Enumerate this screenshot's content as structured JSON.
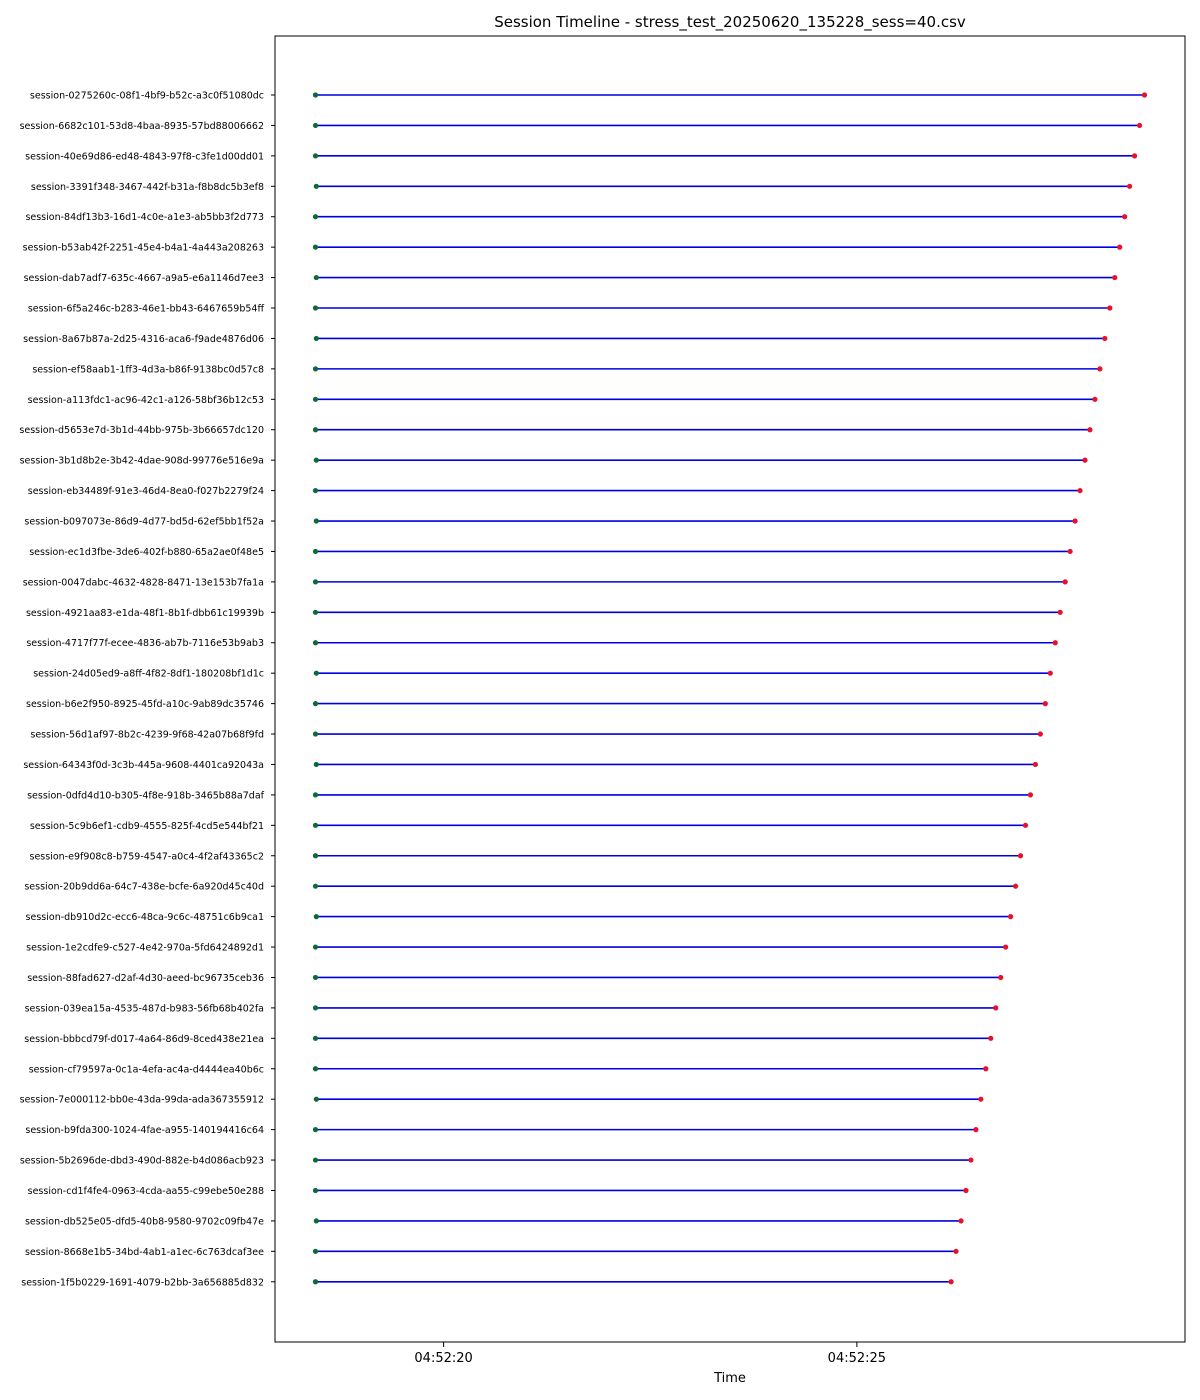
{
  "chart_data": {
    "type": "timeline",
    "title": "Session Timeline - stress_test_20250620_135228_sess=40.csv",
    "xlabel": "Time",
    "ylabel": "",
    "x_ticks": [
      "04:52:20",
      "04:52:25"
    ],
    "x_tick_values_s": [
      0,
      5
    ],
    "xlim_s": [
      -2.04,
      8.97
    ],
    "grid": false,
    "legend": "none",
    "colors": {
      "line": "#0000dd",
      "start_marker": "#0a6b3a",
      "end_marker": "#e8102a",
      "axis": "#000000"
    },
    "sessions": [
      {
        "name": "session-0275260c-08f1-4bf9-b52c-a3c0f51080dc",
        "start_s": -1.55,
        "end_s": 8.48
      },
      {
        "name": "session-6682c101-53d8-4baa-8935-57bd88006662",
        "start_s": -1.55,
        "end_s": 8.42
      },
      {
        "name": "session-40e69d86-ed48-4843-97f8-c3fe1d00dd01",
        "start_s": -1.55,
        "end_s": 8.36
      },
      {
        "name": "session-3391f348-3467-442f-b31a-f8b8dc5b3ef8",
        "start_s": -1.54,
        "end_s": 8.3
      },
      {
        "name": "session-84df13b3-16d1-4c0e-a1e3-ab5bb3f2d773",
        "start_s": -1.55,
        "end_s": 8.24
      },
      {
        "name": "session-b53ab42f-2251-45e4-b4a1-4a443a208263",
        "start_s": -1.55,
        "end_s": 8.18
      },
      {
        "name": "session-dab7adf7-635c-4667-a9a5-e6a1146d7ee3",
        "start_s": -1.54,
        "end_s": 8.12
      },
      {
        "name": "session-6f5a246c-b283-46e1-bb43-6467659b54ff",
        "start_s": -1.55,
        "end_s": 8.06
      },
      {
        "name": "session-8a67b87a-2d25-4316-aca6-f9ade4876d06",
        "start_s": -1.54,
        "end_s": 8.0
      },
      {
        "name": "session-ef58aab1-1ff3-4d3a-b86f-9138bc0d57c8",
        "start_s": -1.55,
        "end_s": 7.94
      },
      {
        "name": "session-a113fdc1-ac96-42c1-a126-58bf36b12c53",
        "start_s": -1.55,
        "end_s": 7.88
      },
      {
        "name": "session-d5653e7d-3b1d-44bb-975b-3b66657dc120",
        "start_s": -1.55,
        "end_s": 7.82
      },
      {
        "name": "session-3b1d8b2e-3b42-4dae-908d-99776e516e9a",
        "start_s": -1.54,
        "end_s": 7.76
      },
      {
        "name": "session-eb34489f-91e3-46d4-8ea0-f027b2279f24",
        "start_s": -1.55,
        "end_s": 7.7
      },
      {
        "name": "session-b097073e-86d9-4d77-bd5d-62ef5bb1f52a",
        "start_s": -1.54,
        "end_s": 7.64
      },
      {
        "name": "session-ec1d3fbe-3de6-402f-b880-65a2ae0f48e5",
        "start_s": -1.55,
        "end_s": 7.58
      },
      {
        "name": "session-0047dabc-4632-4828-8471-13e153b7fa1a",
        "start_s": -1.55,
        "end_s": 7.52
      },
      {
        "name": "session-4921aa83-e1da-48f1-8b1f-dbb61c19939b",
        "start_s": -1.55,
        "end_s": 7.46
      },
      {
        "name": "session-4717f77f-ecee-4836-ab7b-7116e53b9ab3",
        "start_s": -1.55,
        "end_s": 7.4
      },
      {
        "name": "session-24d05ed9-a8ff-4f82-8df1-180208bf1d1c",
        "start_s": -1.54,
        "end_s": 7.34
      },
      {
        "name": "session-b6e2f950-8925-45fd-a10c-9ab89dc35746",
        "start_s": -1.55,
        "end_s": 7.28
      },
      {
        "name": "session-56d1af97-8b2c-4239-9f68-42a07b68f9fd",
        "start_s": -1.55,
        "end_s": 7.22
      },
      {
        "name": "session-64343f0d-3c3b-445a-9608-4401ca92043a",
        "start_s": -1.54,
        "end_s": 7.16
      },
      {
        "name": "session-0dfd4d10-b305-4f8e-918b-3465b88a7daf",
        "start_s": -1.55,
        "end_s": 7.1
      },
      {
        "name": "session-5c9b6ef1-cdb9-4555-825f-4cd5e544bf21",
        "start_s": -1.55,
        "end_s": 7.04
      },
      {
        "name": "session-e9f908c8-b759-4547-a0c4-4f2af43365c2",
        "start_s": -1.55,
        "end_s": 6.98
      },
      {
        "name": "session-20b9dd6a-64c7-438e-bcfe-6a920d45c40d",
        "start_s": -1.55,
        "end_s": 6.92
      },
      {
        "name": "session-db910d2c-ecc6-48ca-9c6c-48751c6b9ca1",
        "start_s": -1.54,
        "end_s": 6.86
      },
      {
        "name": "session-1e2cdfe9-c527-4e42-970a-5fd6424892d1",
        "start_s": -1.55,
        "end_s": 6.8
      },
      {
        "name": "session-88fad627-d2af-4d30-aeed-bc96735ceb36",
        "start_s": -1.55,
        "end_s": 6.74
      },
      {
        "name": "session-039ea15a-4535-487d-b983-56fb68b402fa",
        "start_s": -1.55,
        "end_s": 6.68
      },
      {
        "name": "session-bbbcd79f-d017-4a64-86d9-8ced438e21ea",
        "start_s": -1.55,
        "end_s": 6.62
      },
      {
        "name": "session-cf79597a-0c1a-4efa-ac4a-d4444ea40b6c",
        "start_s": -1.55,
        "end_s": 6.56
      },
      {
        "name": "session-7e000112-bb0e-43da-99da-ada367355912",
        "start_s": -1.54,
        "end_s": 6.5
      },
      {
        "name": "session-b9fda300-1024-4fae-a955-140194416c64",
        "start_s": -1.55,
        "end_s": 6.44
      },
      {
        "name": "session-5b2696de-dbd3-490d-882e-b4d086acb923",
        "start_s": -1.55,
        "end_s": 6.38
      },
      {
        "name": "session-cd1f4fe4-0963-4cda-aa55-c99ebe50e288",
        "start_s": -1.55,
        "end_s": 6.32
      },
      {
        "name": "session-db525e05-dfd5-40b8-9580-9702c09fb47e",
        "start_s": -1.54,
        "end_s": 6.26
      },
      {
        "name": "session-8668e1b5-34bd-4ab1-a1ec-6c763dcaf3ee",
        "start_s": -1.55,
        "end_s": 6.2
      },
      {
        "name": "session-1f5b0229-1691-4079-b2bb-3a656885d832",
        "start_s": -1.55,
        "end_s": 6.14
      }
    ]
  }
}
